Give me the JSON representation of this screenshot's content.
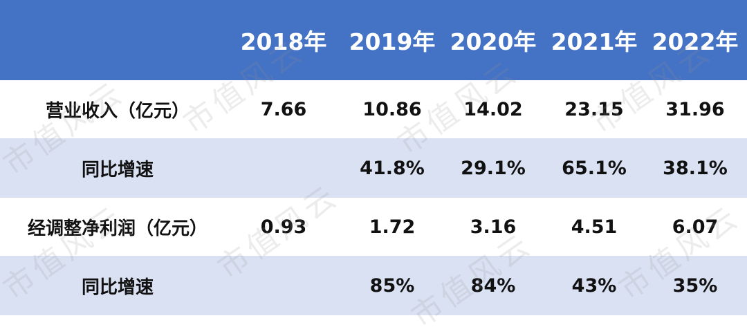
{
  "header": {
    "label": "",
    "years": [
      "2018年",
      "2019年",
      "2020年",
      "2021年",
      "2022年"
    ]
  },
  "rows": [
    {
      "label": "营业收入（亿元）",
      "values": [
        "7.66",
        "10.86",
        "14.02",
        "23.15",
        "31.96"
      ]
    },
    {
      "label": "同比增速",
      "values": [
        "",
        "41.8%",
        "29.1%",
        "65.1%",
        "38.1%"
      ]
    },
    {
      "label": "经调整净利润（亿元）",
      "values": [
        "0.93",
        "1.72",
        "3.16",
        "4.51",
        "6.07"
      ]
    },
    {
      "label": "同比增速",
      "values": [
        "",
        "85%",
        "84%",
        "43%",
        "35%"
      ]
    }
  ],
  "watermark": "市值风云",
  "colors": {
    "header_bg": "#4472c4",
    "stripe_bg": "#d9e1f2",
    "header_text": "#ffffff"
  }
}
